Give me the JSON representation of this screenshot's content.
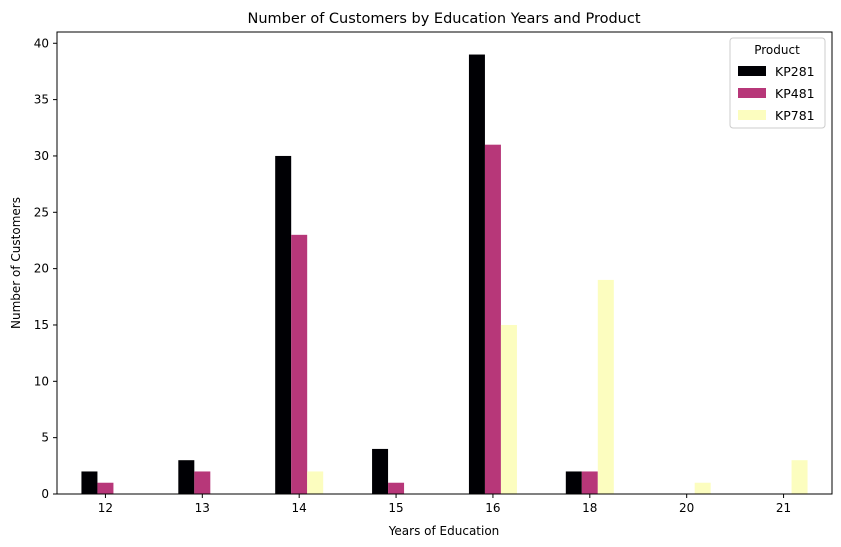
{
  "chart_data": {
    "type": "bar",
    "title": "Number of Customers by Education Years and Product",
    "xlabel": "Years of Education",
    "ylabel": "Number of Customers",
    "categories": [
      "12",
      "13",
      "14",
      "15",
      "16",
      "18",
      "20",
      "21"
    ],
    "series": [
      {
        "name": "KP281",
        "color": "#000004",
        "values": [
          2,
          3,
          30,
          4,
          39,
          2,
          0,
          0
        ]
      },
      {
        "name": "KP481",
        "color": "#b73779",
        "values": [
          1,
          2,
          23,
          1,
          31,
          2,
          0,
          0
        ]
      },
      {
        "name": "KP781",
        "color": "#fcfdbf",
        "values": [
          0,
          0,
          2,
          0,
          15,
          19,
          1,
          3
        ]
      }
    ],
    "ylim": [
      0,
      41
    ],
    "yticks": [
      0,
      5,
      10,
      15,
      20,
      25,
      30,
      35,
      40
    ],
    "grid": false,
    "legend": {
      "title": "Product",
      "placement": "top-right"
    }
  }
}
